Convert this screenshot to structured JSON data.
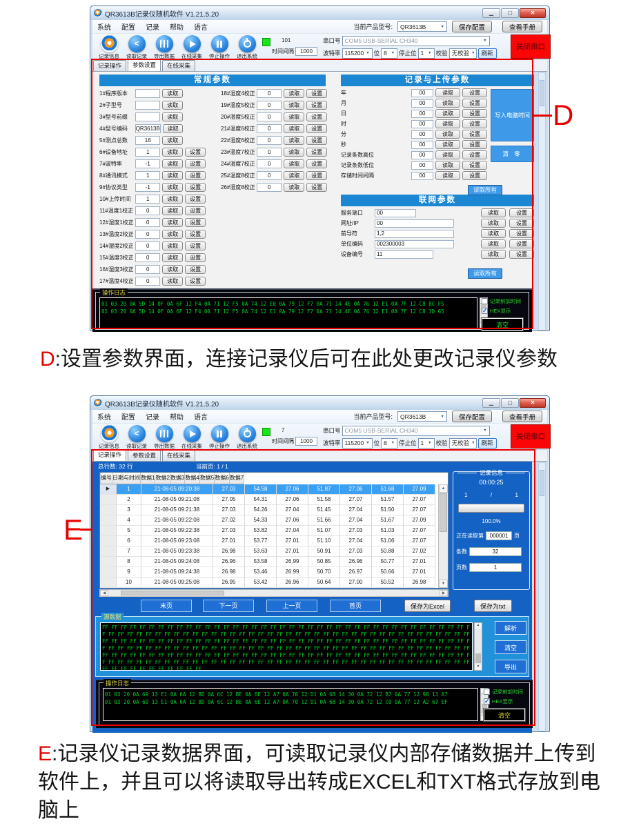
{
  "labels": {
    "read": "读取",
    "set": "设置"
  },
  "windowD": {
    "title": "QR3613B记录仪随机软件   V1.21.5.20",
    "menus": [
      "系统",
      "配置",
      "记录",
      "帮助",
      "语言"
    ],
    "product_label": "当前产品型号:",
    "product_value": "QR3613B",
    "save_config": "保存配置",
    "view_manual": "查看手册",
    "tools": [
      "记录信息",
      "读取记录",
      "导出数据",
      "在线采集",
      "停止操作",
      "退出系统"
    ],
    "interval_count": "101",
    "interval_label": "时间间隔",
    "interval_value": "1000",
    "port_label": "串口号",
    "port_value": "COM5 USB-SERIAL CH340",
    "baud_label": "波特率",
    "baud_value": "115200",
    "bits_label": "位",
    "bits_value": "8",
    "stop_label": "停止位",
    "stop_value": "1",
    "parity_label": "校验",
    "parity_value": "无校验",
    "refresh": "刷新",
    "close_port": "关闭串口",
    "tabs": [
      "记录操作",
      "参数设置",
      "在线采集"
    ],
    "general": {
      "title": "常规参数",
      "left_rows": [
        {
          "label": "1#程序版本",
          "value": "",
          "set": false
        },
        {
          "label": "2#子型号",
          "value": "",
          "set": false
        },
        {
          "label": "3#型号前缀",
          "value": "",
          "set": false
        },
        {
          "label": "4#型号编码",
          "value": "QR3613B",
          "set": false
        },
        {
          "label": "5#测点总数",
          "value": "16",
          "set": false
        },
        {
          "label": "6#设备地址",
          "value": "1",
          "set": true
        },
        {
          "label": "7#波特率",
          "value": "-1",
          "set": true
        },
        {
          "label": "8#通讯模式",
          "value": "1",
          "set": true
        },
        {
          "label": "9#协议类型",
          "value": "-1",
          "set": true
        },
        {
          "label": "10#上传时间",
          "value": "1",
          "set": true
        },
        {
          "label": "11#温度1校正",
          "value": "0",
          "set": true
        },
        {
          "label": "12#湿度1校正",
          "value": "0",
          "set": true
        },
        {
          "label": "13#温度2校正",
          "value": "0",
          "set": true
        },
        {
          "label": "14#湿度2校正",
          "value": "0",
          "set": true
        },
        {
          "label": "15#温度3校正",
          "value": "0",
          "set": true
        },
        {
          "label": "16#湿度3校正",
          "value": "0",
          "set": true
        },
        {
          "label": "17#温度4校正",
          "value": "0",
          "set": true
        }
      ],
      "mid_rows": [
        {
          "label": "18#湿度4校正",
          "value": "0",
          "set": true
        },
        {
          "label": "19#温度5校正",
          "value": "0",
          "set": true
        },
        {
          "label": "20#湿度5校正",
          "value": "0",
          "set": true
        },
        {
          "label": "21#温度6校正",
          "value": "0",
          "set": true
        },
        {
          "label": "22#湿度6校正",
          "value": "0",
          "set": true
        },
        {
          "label": "23#温度7校正",
          "value": "0",
          "set": true
        },
        {
          "label": "24#湿度7校正",
          "value": "0",
          "set": true
        },
        {
          "label": "25#温度8校正",
          "value": "0",
          "set": true
        },
        {
          "label": "26#湿度8校正",
          "value": "0",
          "set": true
        }
      ]
    },
    "record_upload": {
      "title": "记录与上传参数",
      "rows": [
        {
          "label": "年",
          "value": "00"
        },
        {
          "label": "月",
          "value": "00"
        },
        {
          "label": "日",
          "value": "00"
        },
        {
          "label": "时",
          "value": "00"
        },
        {
          "label": "分",
          "value": "00"
        },
        {
          "label": "秒",
          "value": "00"
        },
        {
          "label": "记录条数高位",
          "value": "00"
        },
        {
          "label": "记录条数低位",
          "value": "00"
        },
        {
          "label": "存储时间间隔",
          "value": "00"
        }
      ],
      "read_all": "读取所有",
      "write_pc_time": "写入电脑时间",
      "clear_zero": "清 零"
    },
    "network": {
      "title": "联网参数",
      "rows": [
        {
          "label": "服务端口",
          "value": "00",
          "w": 60
        },
        {
          "label": "网址/IP",
          "value": "00",
          "w": 115
        },
        {
          "label": "前导符",
          "value": "1,2",
          "w": 115
        },
        {
          "label": "单位编码",
          "value": "002300003",
          "w": 115
        },
        {
          "label": "设备编号",
          "value": "11",
          "w": 85
        }
      ],
      "read_all": "读取所有"
    },
    "log": {
      "title": "操作日志",
      "lines": [
        "01 03 20 0A 5D 14 0F 0A 6F 12 F4 0A 71 12 F5 0A 74 12 E0 0A 79 12 F7 0A 71 14 4E 0A 76 12 E1 0A 7F 12 C8 8C F5",
        "01 03 20 0A 5D 14 0F 0A 6F 12 F4 0A 71 12 F5 0A 74 12 E1 0A 79 12 F7 0A 71 14 4E 0A 76 12 E1 0A 7F 12 C8 3D 65"
      ],
      "cb1": "记录前加时间",
      "cb2": "HEX显示",
      "clear": "清空"
    }
  },
  "windowE": {
    "title": "QR3613B记录仪随机软件   V1.21.5.20",
    "menus": [
      "系统",
      "配置",
      "记录",
      "帮助",
      "语言"
    ],
    "product_label": "当前产品型号:",
    "product_value": "QR3613B",
    "save_config": "保存配置",
    "view_manual": "查看手册",
    "tools": [
      "记录信息",
      "读取记录",
      "导出数据",
      "在线采集",
      "停止操作",
      "退出系统"
    ],
    "interval_count": "7",
    "interval_label": "时间间隔",
    "interval_value": "1000",
    "port_label": "串口号",
    "port_value": "COM5 USB-SERIAL CH340",
    "baud_label": "波特率",
    "baud_value": "115200",
    "bits_label": "位",
    "bits_value": "8",
    "stop_label": "停止位",
    "stop_value": "1",
    "parity_label": "校验",
    "parity_value": "无校验",
    "refresh": "刷新",
    "close_port": "关闭串口",
    "tabs": [
      "记录操作",
      "参数设置",
      "在线采集"
    ],
    "summary_total": "总行数: 32 行",
    "summary_page": "当前页: 1 / 1",
    "table": {
      "headers": [
        "",
        "编号",
        "日期与时间",
        "数据1",
        "数据2",
        "数据3",
        "数据4",
        "数据5",
        "数据6",
        "数据7"
      ],
      "rows": [
        {
          "sel": true,
          "cells": [
            "▶",
            "1",
            "21-08-05 09:20:38",
            "27.03",
            "54.58",
            "27.06",
            "51.87",
            "27.06",
            "51.68",
            "27.09"
          ]
        },
        {
          "sel": false,
          "cells": [
            "",
            "2",
            "21-08-05 09:21:08",
            "27.05",
            "54.31",
            "27.06",
            "51.58",
            "27.07",
            "51.57",
            "27.07"
          ]
        },
        {
          "sel": false,
          "cells": [
            "",
            "3",
            "21-08-05 09:21:38",
            "27.03",
            "54.26",
            "27.04",
            "51.45",
            "27.04",
            "51.50",
            "27.07"
          ]
        },
        {
          "sel": false,
          "cells": [
            "",
            "4",
            "21-08-05 09:22:08",
            "27.02",
            "54.33",
            "27.06",
            "51.66",
            "27.04",
            "51.67",
            "27.09"
          ]
        },
        {
          "sel": false,
          "cells": [
            "",
            "5",
            "21-08-05 09:22:38",
            "27.03",
            "53.82",
            "27.04",
            "51.07",
            "27.03",
            "51.03",
            "27.07"
          ]
        },
        {
          "sel": false,
          "cells": [
            "",
            "6",
            "21-08-05 09:23:08",
            "27.01",
            "53.77",
            "27.01",
            "51.10",
            "27.04",
            "51.06",
            "27.07"
          ]
        },
        {
          "sel": false,
          "cells": [
            "",
            "7",
            "21-08-05 09:23:38",
            "26.98",
            "53.63",
            "27.01",
            "50.91",
            "27.03",
            "50.88",
            "27.02"
          ]
        },
        {
          "sel": false,
          "cells": [
            "",
            "8",
            "21-08-05 09:24:08",
            "26.96",
            "53.58",
            "26.99",
            "50.85",
            "26.96",
            "50.77",
            "27.01"
          ]
        },
        {
          "sel": false,
          "cells": [
            "",
            "9",
            "21-08-05 09:24:38",
            "26.98",
            "53.46",
            "26.99",
            "50.70",
            "26.97",
            "50.66",
            "27.01"
          ]
        },
        {
          "sel": false,
          "cells": [
            "",
            "10",
            "21-08-05 09:25:08",
            "26.95",
            "53.42",
            "26.96",
            "50.64",
            "27.00",
            "50.52",
            "26.98"
          ]
        }
      ]
    },
    "nav": {
      "last": "末页",
      "next": "下一页",
      "prev": "上一页",
      "first": "首页",
      "save_excel": "保存为Excel",
      "save_txt": "保存为txt"
    },
    "record_info": {
      "title": "记录信息",
      "time": "00:00:25",
      "page_left": "1",
      "page_sep": "/",
      "page_right": "1",
      "percent": "100.0%",
      "reading_label": "正在读取第",
      "reading_value": "000001",
      "reading_unit": "页",
      "count_label": "条数",
      "count_value": "32",
      "pages_label": "页数",
      "pages_value": "1"
    },
    "source": {
      "title": "源数据",
      "byte": "FF",
      "count": 248,
      "parse": "解析",
      "clear": "清空",
      "export": "导出"
    },
    "log": {
      "title": "操作日志",
      "lines": [
        "01 03 20 0A 69 13 E1 0A 6A 12 BD 0A 6C 12 BE 0A 6E 12 A7 0A 70 12 D1 0A 6B 14 30 0A 72 12 B7 0A 77 12 98 13 A7",
        "01 03 20 0A 69 13 E1 0A 6A 12 BD 0A 6C 12 BE 0A 6E 12 A7 0A 70 12 D1 0A 6B 14 30 0A 72 12 C0 0A 77 12 A2 67 EF"
      ],
      "cb1": "记录前加时间",
      "cb2": "HEX显示",
      "clear": "清空"
    }
  },
  "annotations": {
    "letter_d": "D",
    "letter_e": "E",
    "caption_d_prefix": "D",
    "caption_d_text": ":设置参数界面，连接记录仪后可在此处更改记录仪参数",
    "caption_e_prefix": "E",
    "caption_e_text": ":记录仪记录数据界面，可读取记录仪内部存储数据并上传到软件上，并且可以将读取导出转成EXCEL和TXT格式存放到电脑上"
  }
}
